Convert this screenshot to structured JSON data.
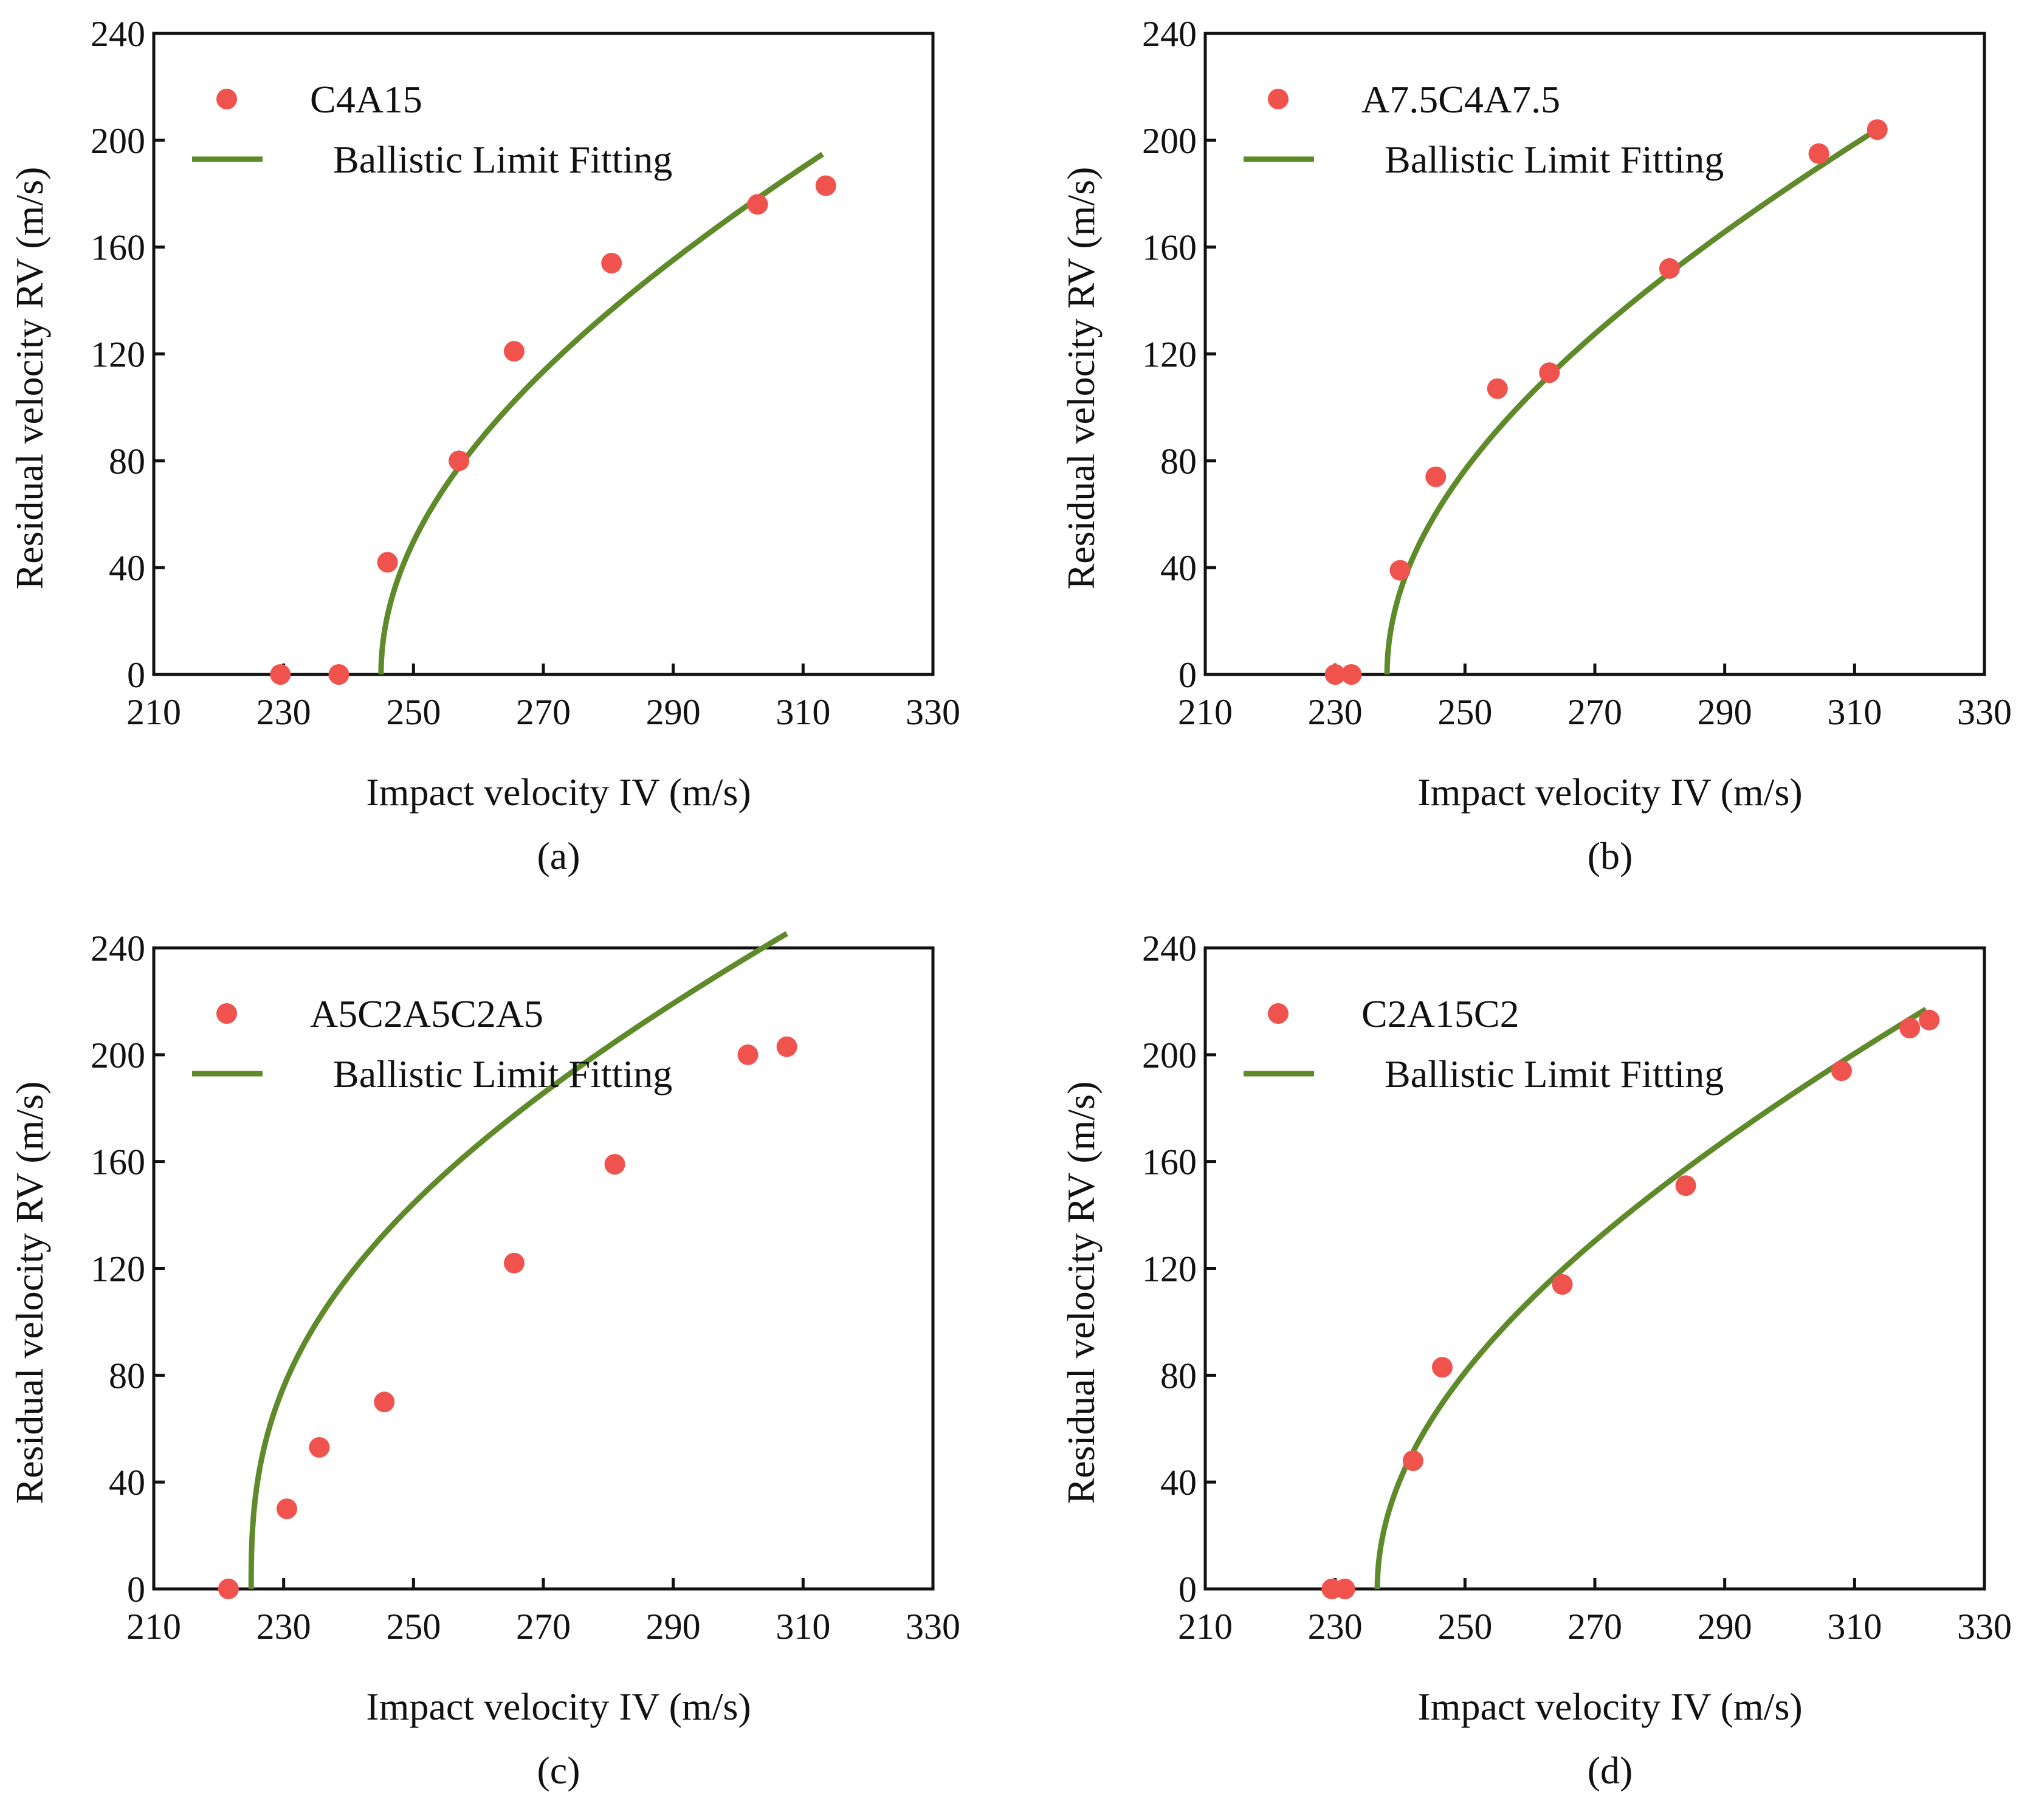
{
  "colors": {
    "points": "#f0534d",
    "fit_line": "#5f8a2a",
    "axes": "#111111",
    "background": "#ffffff"
  },
  "chart_data": [
    {
      "type": "scatter",
      "panel_label": "(a)",
      "xlabel": "Impact velocity IV (m/s)",
      "ylabel": "Residual velocity RV (m/s)",
      "xlim": [
        210,
        330
      ],
      "ylim": [
        0,
        240
      ],
      "xticks": [
        210,
        230,
        250,
        270,
        290,
        310,
        330
      ],
      "yticks": [
        0,
        40,
        80,
        120,
        160,
        200,
        240
      ],
      "legend_position": "top-left",
      "series": [
        {
          "name": "C4A15",
          "kind": "points",
          "x": [
            229.5,
            238.5,
            246,
            257,
            265.5,
            280.5,
            303,
            313.5
          ],
          "y": [
            0,
            0,
            42,
            80,
            121,
            154,
            176,
            183
          ]
        },
        {
          "name": "Ballistic Limit Fitting",
          "kind": "fit",
          "model": {
            "vbl": 245,
            "a": 1,
            "p": 2,
            "x_end": 313
          }
        }
      ]
    },
    {
      "type": "scatter",
      "panel_label": "(b)",
      "xlabel": "Impact velocity IV (m/s)",
      "ylabel": "Residual velocity RV (m/s)",
      "xlim": [
        210,
        330
      ],
      "ylim": [
        0,
        240
      ],
      "xticks": [
        210,
        230,
        250,
        270,
        290,
        310,
        330
      ],
      "yticks": [
        0,
        40,
        80,
        120,
        160,
        200,
        240
      ],
      "legend_position": "top-left",
      "series": [
        {
          "name": "A7.5C4A7.5",
          "kind": "points",
          "x": [
            230,
            232.5,
            240,
            245.5,
            255,
            263,
            281.5,
            304.5,
            313.5
          ],
          "y": [
            0,
            0,
            39,
            74,
            107,
            113,
            152,
            195,
            204
          ]
        },
        {
          "name": "Ballistic Limit Fitting",
          "kind": "fit",
          "model": {
            "vbl": 238,
            "a": 1,
            "p": 2,
            "x_end": 313
          }
        }
      ]
    },
    {
      "type": "scatter",
      "panel_label": "(c)",
      "xlabel": "Impact velocity IV (m/s)",
      "ylabel": "Residual velocity RV (m/s)",
      "xlim": [
        210,
        330
      ],
      "ylim": [
        0,
        240
      ],
      "xticks": [
        210,
        230,
        250,
        270,
        290,
        310,
        330
      ],
      "yticks": [
        0,
        40,
        80,
        120,
        160,
        200,
        240
      ],
      "legend_position": "top-left",
      "series": [
        {
          "name": "A5C2A5C2A5",
          "kind": "points",
          "x": [
            221.5,
            230.5,
            235.5,
            245.5,
            265.5,
            281,
            301.5,
            307.5
          ],
          "y": [
            0,
            30,
            53,
            70,
            122,
            159,
            200,
            203
          ]
        },
        {
          "name": "Ballistic Limit Fitting",
          "kind": "fit",
          "model": {
            "vbl": 225,
            "a": 1,
            "p": 2.6,
            "x_end": 307.5
          }
        }
      ]
    },
    {
      "type": "scatter",
      "panel_label": "(d)",
      "xlabel": "Impact velocity IV (m/s)",
      "ylabel": "Residual velocity RV (m/s)",
      "xlim": [
        210,
        330
      ],
      "ylim": [
        0,
        240
      ],
      "xticks": [
        210,
        230,
        250,
        270,
        290,
        310,
        330
      ],
      "yticks": [
        0,
        40,
        80,
        120,
        160,
        200,
        240
      ],
      "legend_position": "top-left",
      "series": [
        {
          "name": "C2A15C2",
          "kind": "points",
          "x": [
            229.5,
            231.5,
            242,
            246.5,
            265,
            284,
            308,
            318.5,
            321.5
          ],
          "y": [
            0,
            0,
            48,
            83,
            114,
            151,
            194,
            210,
            213
          ]
        },
        {
          "name": "Ballistic Limit Fitting",
          "kind": "fit",
          "model": {
            "vbl": 236.5,
            "a": 1,
            "p": 2,
            "x_end": 321
          }
        }
      ]
    }
  ]
}
